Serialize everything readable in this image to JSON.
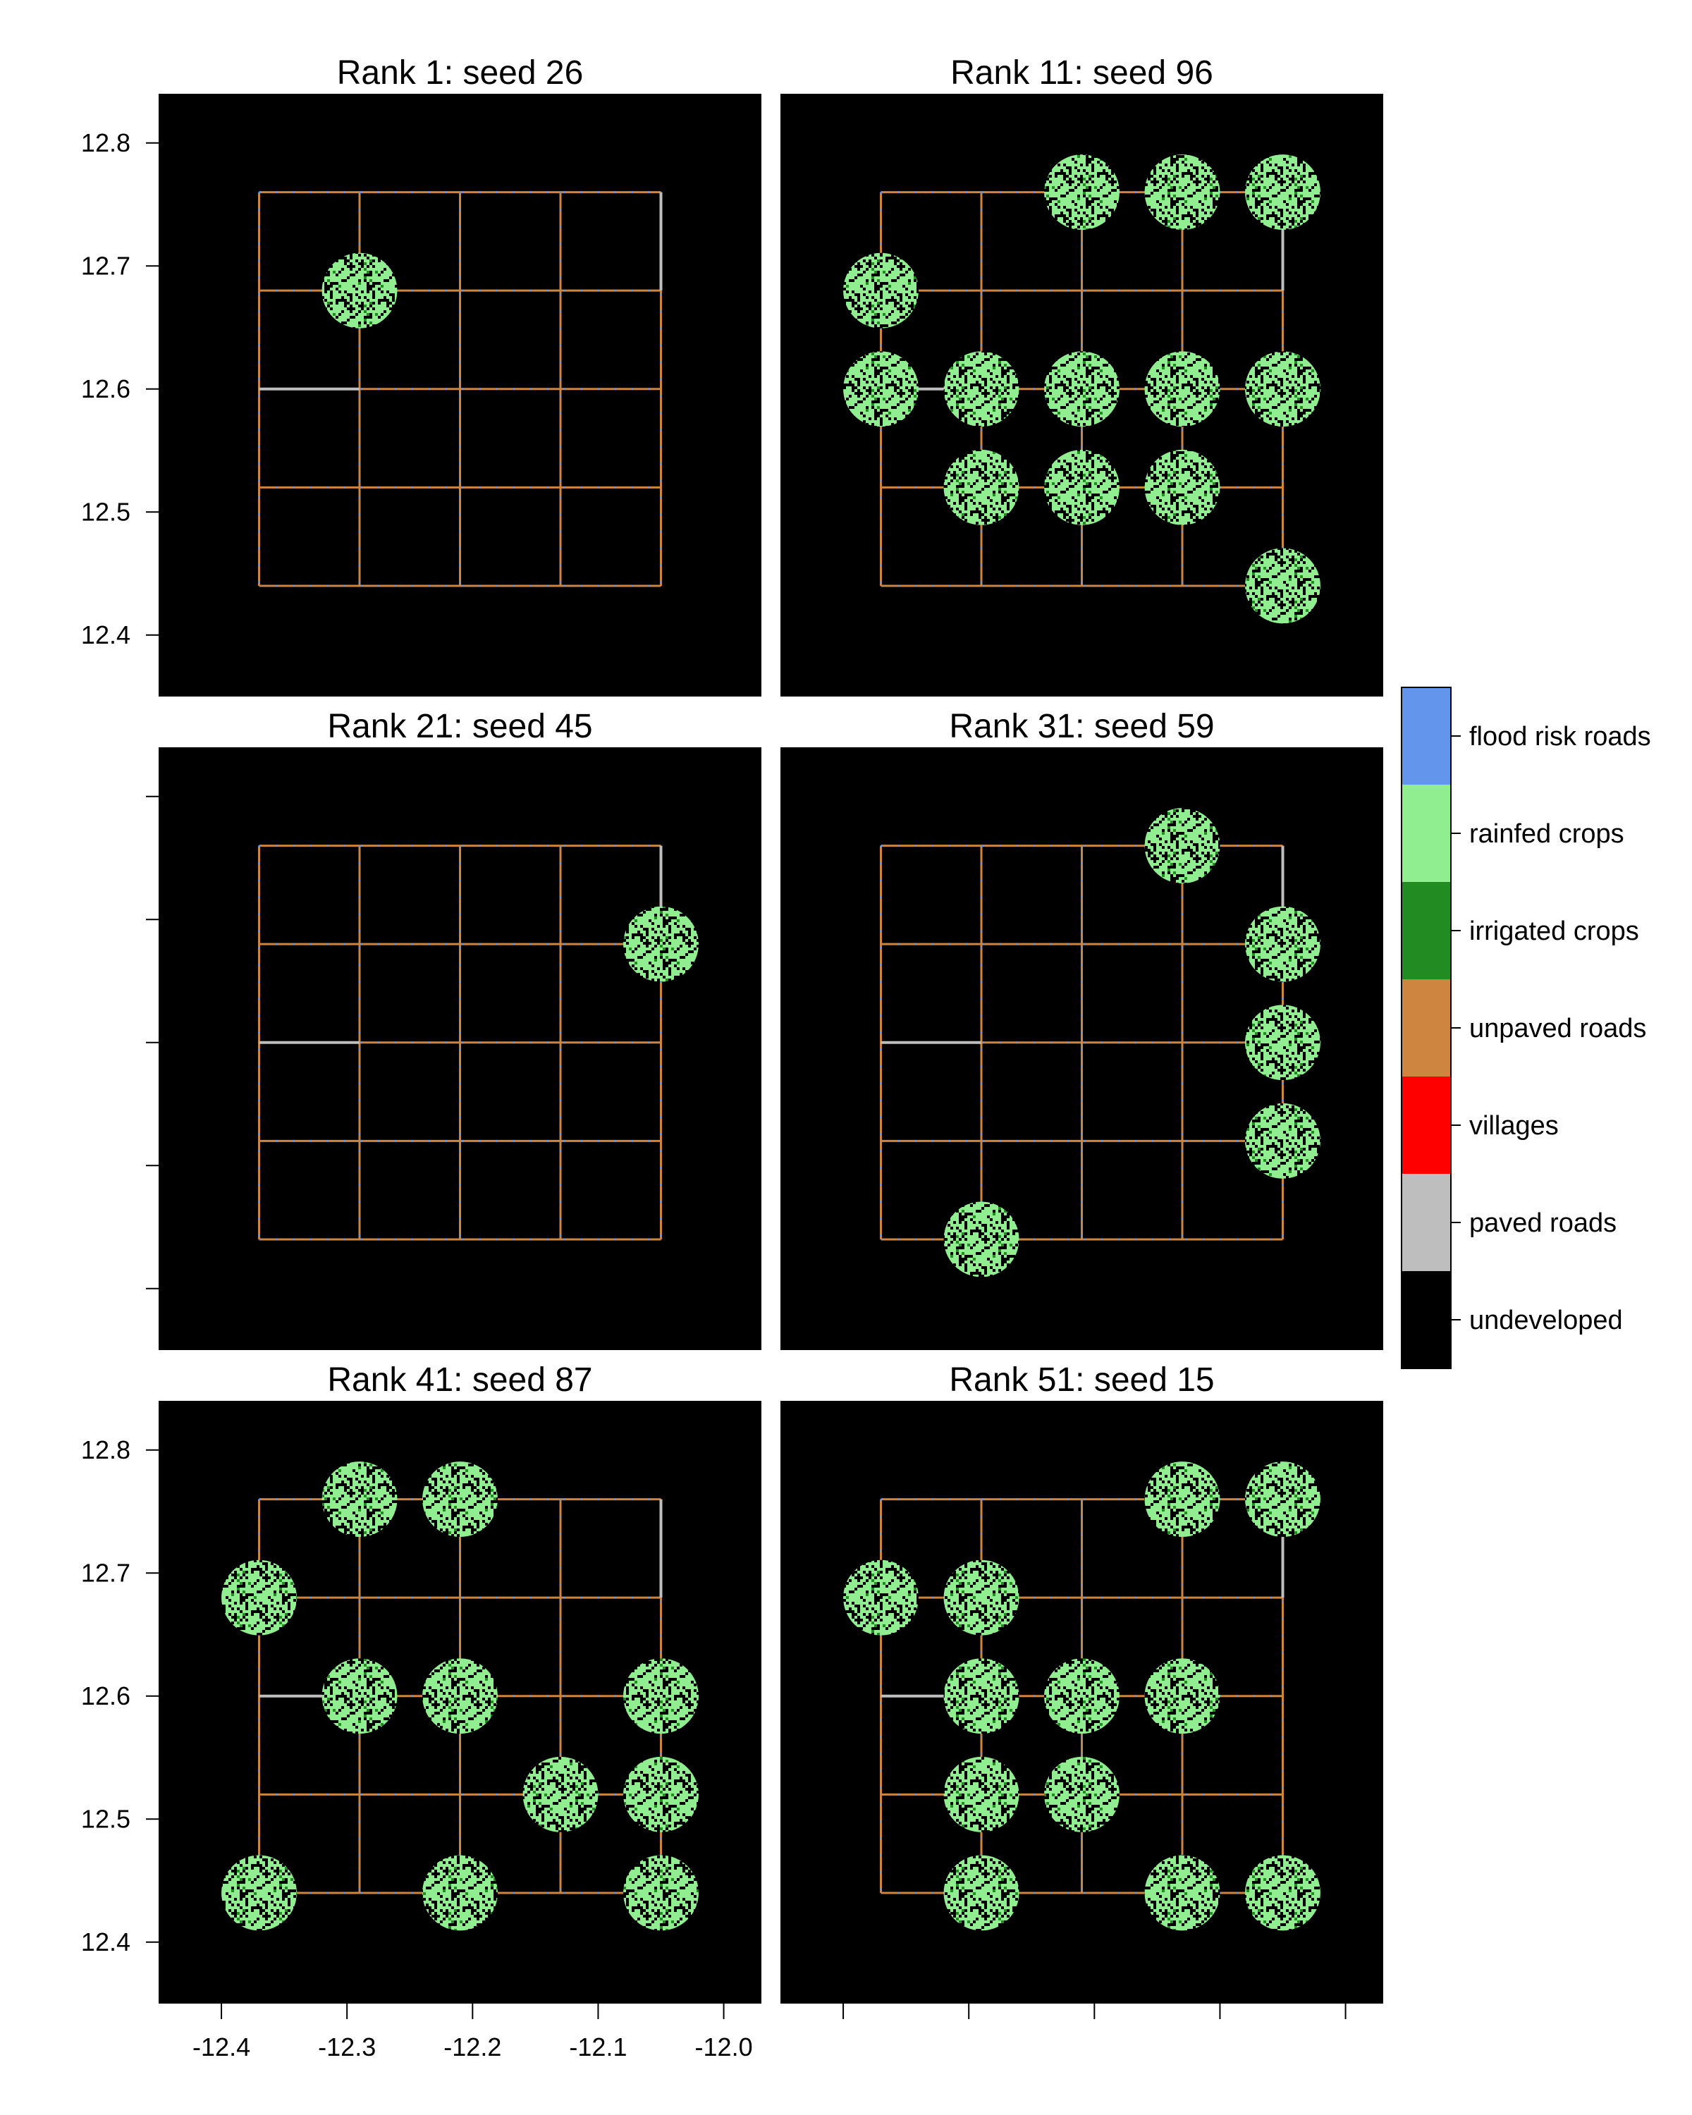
{
  "chart_data": {
    "type": "heatmap",
    "xlim": [
      -12.45,
      -11.97
    ],
    "ylim": [
      12.35,
      12.84
    ],
    "x_ticks": [
      -12.4,
      -12.3,
      -12.2,
      -12.1,
      -12.0
    ],
    "x_tick_labels": [
      "-12.4",
      "-12.3",
      "-12.2",
      "-12.1",
      "-12.0"
    ],
    "y_ticks": [
      12.4,
      12.5,
      12.6,
      12.7,
      12.8
    ],
    "y_tick_labels": [
      "12.4",
      "12.5",
      "12.6",
      "12.7",
      "12.8"
    ],
    "grid": {
      "x_lines": [
        -12.37,
        -12.29,
        -12.21,
        -12.13,
        -12.05
      ],
      "y_lines": [
        12.44,
        12.52,
        12.6,
        12.68,
        12.76
      ],
      "paved_segments": [
        {
          "x1": -12.05,
          "y1": 12.76,
          "x2": -12.05,
          "y2": 12.68
        },
        {
          "x1": -12.37,
          "y1": 12.6,
          "x2": -12.29,
          "y2": 12.6
        }
      ]
    },
    "crop_radius": 0.03,
    "legend": {
      "position": "right",
      "entries": [
        {
          "label": "flood risk roads",
          "color": "#6495ED"
        },
        {
          "label": "rainfed crops",
          "color": "#90EE90"
        },
        {
          "label": "irrigated crops",
          "color": "#228B22"
        },
        {
          "label": "unpaved roads",
          "color": "#CD853F"
        },
        {
          "label": "villages",
          "color": "#FF0000"
        },
        {
          "label": "paved roads",
          "color": "#BEBEBE"
        },
        {
          "label": "undeveloped",
          "color": "#000000"
        }
      ]
    },
    "panels": [
      {
        "title": "Rank 1: seed 26",
        "crops": [
          [
            -12.29,
            12.68
          ]
        ]
      },
      {
        "title": "Rank 11: seed 96",
        "crops": [
          [
            -12.21,
            12.76
          ],
          [
            -12.13,
            12.76
          ],
          [
            -12.05,
            12.76
          ],
          [
            -12.37,
            12.68
          ],
          [
            -12.37,
            12.6
          ],
          [
            -12.29,
            12.6
          ],
          [
            -12.21,
            12.6
          ],
          [
            -12.13,
            12.6
          ],
          [
            -12.05,
            12.6
          ],
          [
            -12.29,
            12.52
          ],
          [
            -12.21,
            12.52
          ],
          [
            -12.13,
            12.52
          ],
          [
            -12.05,
            12.44
          ]
        ]
      },
      {
        "title": "Rank 21: seed 45",
        "crops": [
          [
            -12.05,
            12.68
          ]
        ]
      },
      {
        "title": "Rank 31: seed 59",
        "crops": [
          [
            -12.13,
            12.76
          ],
          [
            -12.05,
            12.68
          ],
          [
            -12.05,
            12.6
          ],
          [
            -12.05,
            12.52
          ],
          [
            -12.29,
            12.44
          ]
        ]
      },
      {
        "title": "Rank 41: seed 87",
        "crops": [
          [
            -12.29,
            12.76
          ],
          [
            -12.21,
            12.76
          ],
          [
            -12.37,
            12.68
          ],
          [
            -12.29,
            12.6
          ],
          [
            -12.21,
            12.6
          ],
          [
            -12.05,
            12.6
          ],
          [
            -12.13,
            12.52
          ],
          [
            -12.05,
            12.52
          ],
          [
            -12.37,
            12.44
          ],
          [
            -12.21,
            12.44
          ],
          [
            -12.05,
            12.44
          ]
        ]
      },
      {
        "title": "Rank 51: seed 15",
        "crops": [
          [
            -12.13,
            12.76
          ],
          [
            -12.05,
            12.76
          ],
          [
            -12.37,
            12.68
          ],
          [
            -12.29,
            12.68
          ],
          [
            -12.29,
            12.6
          ],
          [
            -12.21,
            12.6
          ],
          [
            -12.13,
            12.6
          ],
          [
            -12.29,
            12.52
          ],
          [
            -12.21,
            12.52
          ],
          [
            -12.29,
            12.44
          ],
          [
            -12.13,
            12.44
          ],
          [
            -12.05,
            12.44
          ]
        ]
      }
    ]
  }
}
